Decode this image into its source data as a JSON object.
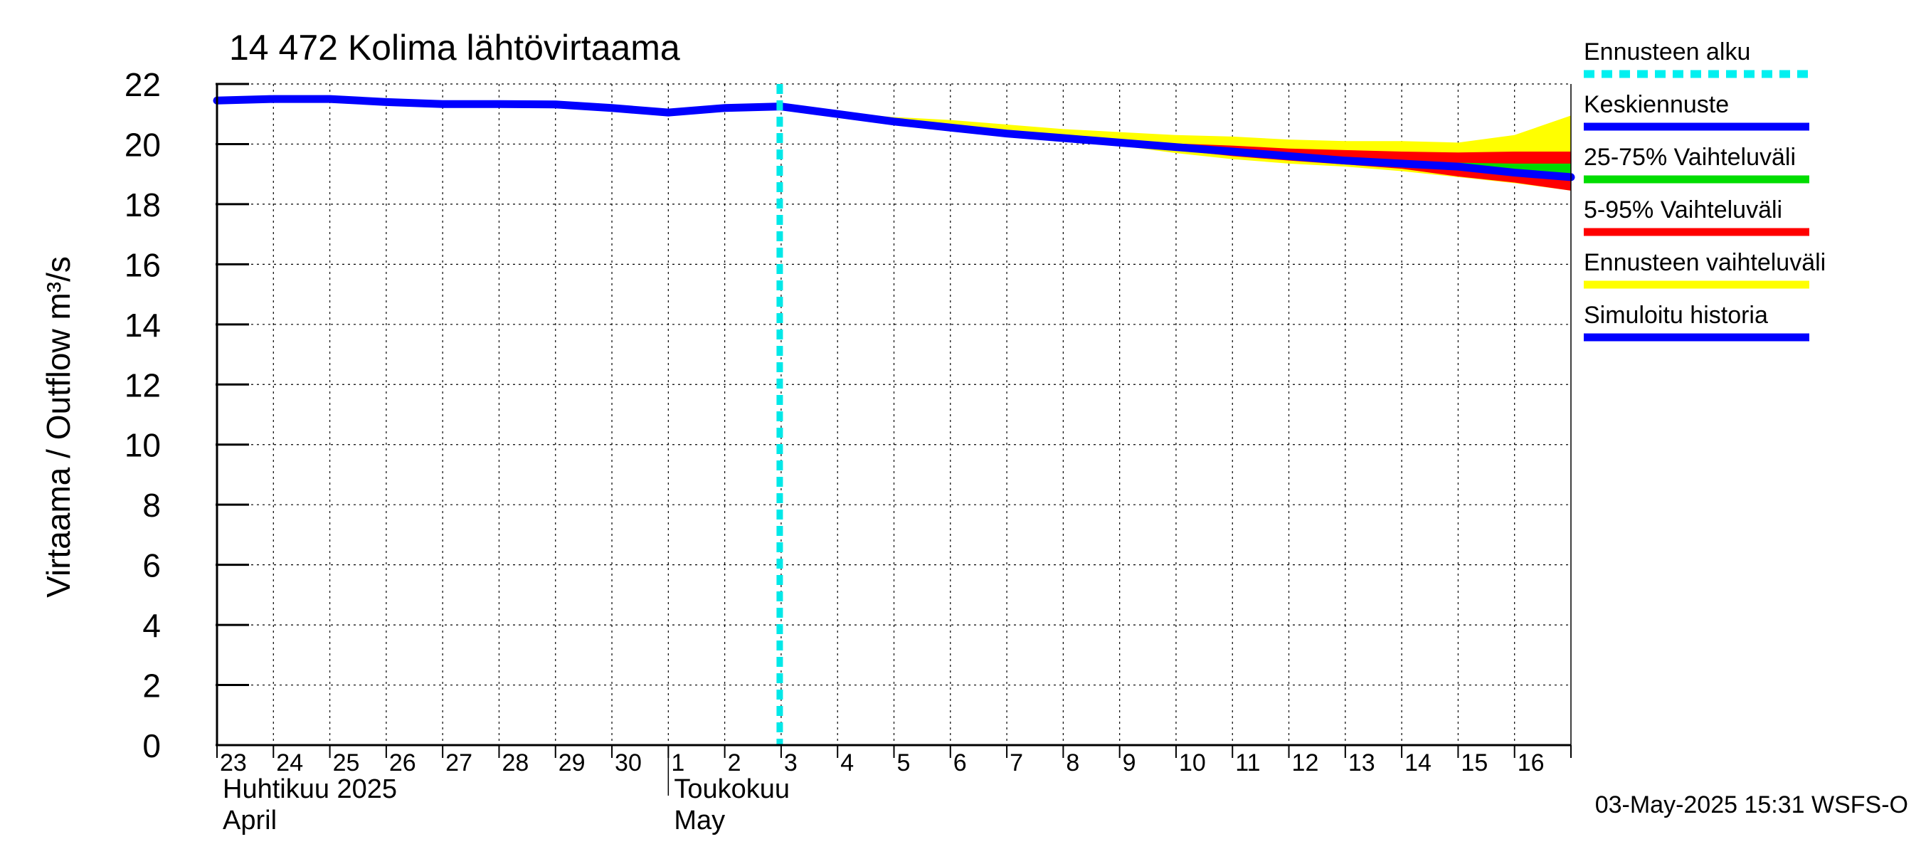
{
  "chart_data": {
    "type": "line",
    "title": "14 472 Kolima lähtövirtaama",
    "ylabel": "Virtaama / Outflow    m³/s",
    "ylim": [
      0,
      22
    ],
    "yticks": [
      0,
      2,
      4,
      6,
      8,
      10,
      12,
      14,
      16,
      18,
      20,
      22
    ],
    "x_day_labels": [
      "23",
      "24",
      "25",
      "26",
      "27",
      "28",
      "29",
      "30",
      "1",
      "2",
      "3",
      "4",
      "5",
      "6",
      "7",
      "8",
      "9",
      "10",
      "11",
      "12",
      "13",
      "14",
      "15",
      "16"
    ],
    "month_labels": [
      {
        "fi": "Huhtikuu  2025",
        "en": "April",
        "start_index": 0
      },
      {
        "fi": "Toukokuu",
        "en": "May",
        "start_index": 8
      }
    ],
    "forecast_start_index": 10,
    "x_index_end": 24,
    "legend": [
      {
        "key": "forecast_start",
        "label": "Ennusteen alku",
        "color": "#00f0f0",
        "style": "dashed"
      },
      {
        "key": "mean_forecast",
        "label": "Keskiennuste",
        "color": "#0000ff",
        "style": "solid"
      },
      {
        "key": "p25_75",
        "label": "25-75% Vaihteluväli",
        "color": "#00dd00",
        "style": "solid"
      },
      {
        "key": "p5_95",
        "label": "5-95% Vaihteluväli",
        "color": "#ff0000",
        "style": "solid"
      },
      {
        "key": "full_range",
        "label": "Ennusteen vaihteluväli",
        "color": "#ffff00",
        "style": "solid"
      },
      {
        "key": "simulated",
        "label": "Simuloitu historia",
        "color": "#0000ff",
        "style": "solid"
      }
    ],
    "series": [
      {
        "name": "Simuloitu historia",
        "key": "simulated",
        "color": "#0000ff",
        "x": [
          0,
          1,
          2,
          3,
          4,
          5,
          6,
          7,
          8,
          9,
          10
        ],
        "values": [
          21.45,
          21.5,
          21.5,
          21.4,
          21.33,
          21.33,
          21.32,
          21.2,
          21.05,
          21.2,
          21.25
        ]
      },
      {
        "name": "Keskiennuste",
        "key": "mean_forecast",
        "color": "#0000ff",
        "x": [
          10,
          11,
          12,
          13,
          14,
          15,
          16,
          17,
          18,
          19,
          20,
          21,
          22,
          23,
          24
        ],
        "values": [
          21.25,
          21.0,
          20.75,
          20.55,
          20.35,
          20.2,
          20.05,
          19.9,
          19.75,
          19.6,
          19.45,
          19.35,
          19.25,
          19.05,
          18.9
        ]
      }
    ],
    "bands": [
      {
        "name": "Ennusteen vaihteluväli",
        "key": "full_range",
        "color": "#ffff00",
        "x": [
          10,
          11,
          12,
          13,
          14,
          15,
          16,
          17,
          18,
          19,
          20,
          21,
          22,
          23,
          24
        ],
        "upper": [
          21.25,
          21.05,
          20.9,
          20.8,
          20.65,
          20.5,
          20.4,
          20.3,
          20.25,
          20.15,
          20.1,
          20.1,
          20.05,
          20.3,
          20.95
        ],
        "lower": [
          21.25,
          20.95,
          20.7,
          20.5,
          20.3,
          20.1,
          19.95,
          19.7,
          19.5,
          19.35,
          19.25,
          19.1,
          18.9,
          18.7,
          18.45
        ]
      },
      {
        "name": "5-95% Vaihteluväli",
        "key": "p5_95",
        "color": "#ff0000",
        "x": [
          10,
          11,
          12,
          13,
          14,
          15,
          16,
          17,
          18,
          19,
          20,
          21,
          22,
          23,
          24
        ],
        "upper": [
          21.25,
          21.02,
          20.8,
          20.6,
          20.42,
          20.25,
          20.12,
          20.02,
          19.95,
          19.85,
          19.8,
          19.75,
          19.72,
          19.75,
          19.75
        ],
        "lower": [
          21.25,
          20.98,
          20.72,
          20.52,
          20.32,
          20.15,
          20.0,
          19.8,
          19.6,
          19.45,
          19.32,
          19.18,
          18.92,
          18.72,
          18.45
        ]
      },
      {
        "name": "25-75% Vaihteluväli",
        "key": "p25_75",
        "color": "#00dd00",
        "x": [
          10,
          11,
          12,
          13,
          14,
          15,
          16,
          17,
          18,
          19,
          20,
          21,
          22,
          23,
          24
        ],
        "upper": [
          21.25,
          21.01,
          20.77,
          20.57,
          20.37,
          20.22,
          20.08,
          19.94,
          19.8,
          19.66,
          19.55,
          19.45,
          19.38,
          19.35,
          19.35
        ],
        "lower": [
          21.25,
          20.99,
          20.73,
          20.53,
          20.33,
          20.18,
          20.02,
          19.86,
          19.7,
          19.55,
          19.4,
          19.28,
          19.12,
          18.95,
          18.78
        ]
      }
    ],
    "timestamp": "03-May-2025 15:31 WSFS-O"
  }
}
